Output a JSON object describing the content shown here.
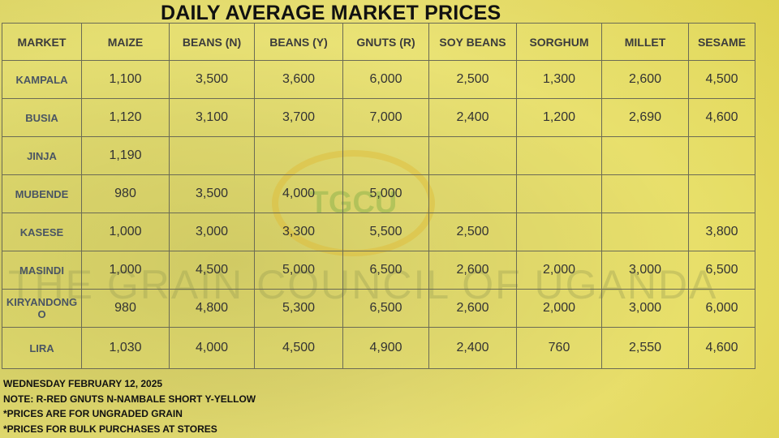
{
  "title": "DAILY AVERAGE MARKET PRICES",
  "watermark": "THE GRAIN COUNCIL OF UGANDA",
  "logo": "TGCU",
  "table": {
    "headers": [
      "MARKET",
      "MAIZE",
      "BEANS (N)",
      "BEANS (Y)",
      "GNUTS (R)",
      "SOY BEANS",
      "SORGHUM",
      "MILLET",
      "SESAME"
    ],
    "rows": [
      [
        "KAMPALA",
        "1,100",
        "3,500",
        "3,600",
        "6,000",
        "2,500",
        "1,300",
        "2,600",
        "4,500"
      ],
      [
        "BUSIA",
        "1,120",
        "3,100",
        "3,700",
        "7,000",
        "2,400",
        "1,200",
        "2,690",
        "4,600"
      ],
      [
        "JINJA",
        "1,190",
        null,
        null,
        null,
        null,
        null,
        null,
        null
      ],
      [
        "MUBENDE",
        "980",
        "3,500",
        "4,000",
        "5,000",
        null,
        null,
        null,
        null
      ],
      [
        "KASESE",
        "1,000",
        "3,000",
        "3,300",
        "5,500",
        "2,500",
        null,
        null,
        "3,800"
      ],
      [
        "MASINDI",
        "1,000",
        "4,500",
        "5,000",
        "6,500",
        "2,600",
        "2,000",
        "3,000",
        "6,500"
      ],
      [
        "KIRYANDONGO",
        "980",
        "4,800",
        "5,300",
        "6,500",
        "2,600",
        "2,000",
        "3,000",
        "6,000"
      ],
      [
        "LIRA",
        "1,030",
        "4,000",
        "4,500",
        "4,900",
        "2,400",
        "760",
        "2,550",
        "4,600"
      ]
    ]
  },
  "notes": [
    "WEDNESDAY FEBRUARY 12, 2025",
    "NOTE: R-RED GNUTS  N-NAMBALE SHORT  Y-YELLOW",
    "*PRICES ARE FOR UNGRADED GRAIN",
    "*PRICES FOR BULK PURCHASES AT STORES"
  ]
}
